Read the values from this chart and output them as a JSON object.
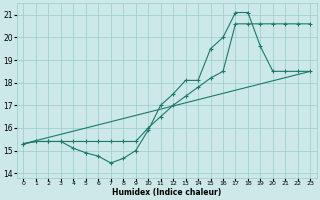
{
  "xlabel": "Humidex (Indice chaleur)",
  "xlim": [
    -0.5,
    23.5
  ],
  "ylim": [
    13.8,
    21.5
  ],
  "yticks": [
    14,
    15,
    16,
    17,
    18,
    19,
    20,
    21
  ],
  "xticks": [
    0,
    1,
    2,
    3,
    4,
    5,
    6,
    7,
    8,
    9,
    10,
    11,
    12,
    13,
    14,
    15,
    16,
    17,
    18,
    19,
    20,
    21,
    22,
    23
  ],
  "bg_color": "#cce8e8",
  "grid_color": "#99cccc",
  "line_color": "#1a7a6a",
  "line1_x": [
    0,
    1,
    2,
    3,
    4,
    5,
    6,
    7,
    8,
    9,
    10,
    11,
    12,
    13,
    14,
    15,
    16,
    17,
    18,
    19,
    20,
    21,
    22,
    23
  ],
  "line1_y": [
    15.3,
    15.4,
    15.4,
    15.4,
    15.1,
    14.9,
    14.75,
    14.45,
    14.65,
    15.0,
    15.9,
    17.0,
    17.5,
    18.1,
    18.1,
    19.5,
    20.0,
    21.1,
    21.1,
    19.6,
    18.5,
    18.5,
    18.5,
    18.5
  ],
  "line2_x": [
    0,
    1,
    2,
    3,
    4,
    5,
    6,
    7,
    8,
    9,
    10,
    11,
    12,
    13,
    14,
    15,
    16,
    17,
    18,
    19,
    20,
    21,
    22,
    23
  ],
  "line2_y": [
    15.3,
    15.4,
    15.4,
    15.4,
    15.4,
    15.4,
    15.4,
    15.4,
    15.4,
    15.4,
    16.0,
    16.5,
    17.0,
    17.4,
    17.8,
    18.2,
    18.5,
    20.6,
    20.6,
    20.6,
    20.6,
    20.6,
    20.6,
    20.6
  ],
  "line3_x": [
    0,
    23
  ],
  "line3_y": [
    15.3,
    18.5
  ]
}
